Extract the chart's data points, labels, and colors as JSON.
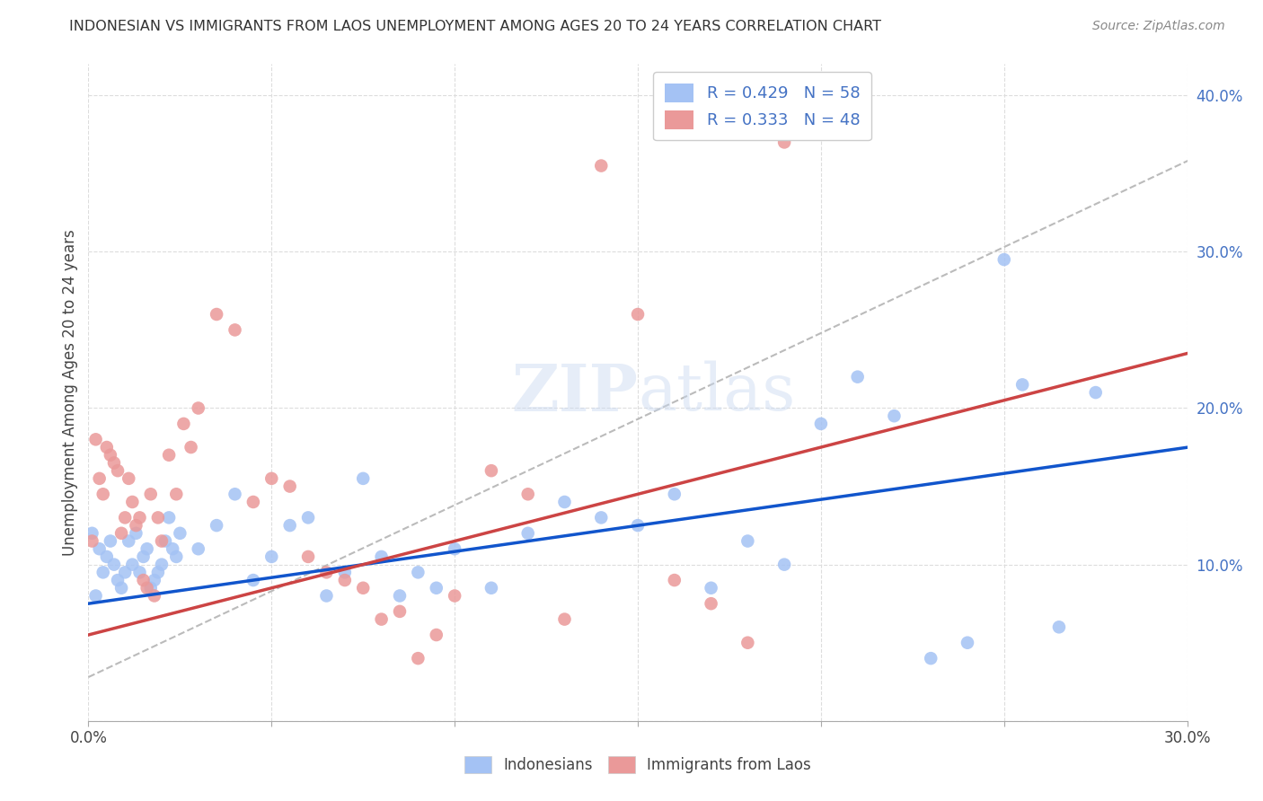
{
  "title": "INDONESIAN VS IMMIGRANTS FROM LAOS UNEMPLOYMENT AMONG AGES 20 TO 24 YEARS CORRELATION CHART",
  "source": "Source: ZipAtlas.com",
  "ylabel": "Unemployment Among Ages 20 to 24 years",
  "xlim": [
    0.0,
    0.3
  ],
  "ylim": [
    0.0,
    0.42
  ],
  "indonesian_R": 0.429,
  "indonesian_N": 58,
  "laos_R": 0.333,
  "laos_N": 48,
  "indonesian_color": "#a4c2f4",
  "laos_color": "#ea9999",
  "indonesian_line_color": "#1155cc",
  "laos_line_color": "#cc4444",
  "indonesian_line_slope": 0.333,
  "indonesian_line_intercept": 0.075,
  "laos_line_slope": 0.6,
  "laos_line_intercept": 0.055,
  "trendline_color": "#bbbbbb",
  "trendline_slope": 1.1,
  "trendline_intercept": 0.028,
  "watermark_zip": "ZIP",
  "watermark_atlas": "atlas",
  "indonesian_x": [
    0.001,
    0.002,
    0.003,
    0.004,
    0.005,
    0.006,
    0.007,
    0.008,
    0.009,
    0.01,
    0.011,
    0.012,
    0.013,
    0.014,
    0.015,
    0.016,
    0.017,
    0.018,
    0.019,
    0.02,
    0.021,
    0.022,
    0.023,
    0.024,
    0.025,
    0.03,
    0.035,
    0.04,
    0.045,
    0.05,
    0.055,
    0.06,
    0.065,
    0.07,
    0.075,
    0.08,
    0.085,
    0.09,
    0.095,
    0.1,
    0.11,
    0.12,
    0.13,
    0.14,
    0.15,
    0.16,
    0.17,
    0.18,
    0.19,
    0.2,
    0.21,
    0.22,
    0.23,
    0.24,
    0.25,
    0.255,
    0.265,
    0.275
  ],
  "indonesian_y": [
    0.12,
    0.08,
    0.11,
    0.095,
    0.105,
    0.115,
    0.1,
    0.09,
    0.085,
    0.095,
    0.115,
    0.1,
    0.12,
    0.095,
    0.105,
    0.11,
    0.085,
    0.09,
    0.095,
    0.1,
    0.115,
    0.13,
    0.11,
    0.105,
    0.12,
    0.11,
    0.125,
    0.145,
    0.09,
    0.105,
    0.125,
    0.13,
    0.08,
    0.095,
    0.155,
    0.105,
    0.08,
    0.095,
    0.085,
    0.11,
    0.085,
    0.12,
    0.14,
    0.13,
    0.125,
    0.145,
    0.085,
    0.115,
    0.1,
    0.19,
    0.22,
    0.195,
    0.04,
    0.05,
    0.295,
    0.215,
    0.06,
    0.21
  ],
  "laos_x": [
    0.001,
    0.002,
    0.003,
    0.004,
    0.005,
    0.006,
    0.007,
    0.008,
    0.009,
    0.01,
    0.011,
    0.012,
    0.013,
    0.014,
    0.015,
    0.016,
    0.017,
    0.018,
    0.019,
    0.02,
    0.022,
    0.024,
    0.026,
    0.028,
    0.03,
    0.035,
    0.04,
    0.045,
    0.05,
    0.055,
    0.06,
    0.065,
    0.07,
    0.075,
    0.08,
    0.085,
    0.09,
    0.095,
    0.1,
    0.11,
    0.12,
    0.13,
    0.14,
    0.15,
    0.16,
    0.17,
    0.18,
    0.19
  ],
  "laos_y": [
    0.115,
    0.18,
    0.155,
    0.145,
    0.175,
    0.17,
    0.165,
    0.16,
    0.12,
    0.13,
    0.155,
    0.14,
    0.125,
    0.13,
    0.09,
    0.085,
    0.145,
    0.08,
    0.13,
    0.115,
    0.17,
    0.145,
    0.19,
    0.175,
    0.2,
    0.26,
    0.25,
    0.14,
    0.155,
    0.15,
    0.105,
    0.095,
    0.09,
    0.085,
    0.065,
    0.07,
    0.04,
    0.055,
    0.08,
    0.16,
    0.145,
    0.065,
    0.355,
    0.26,
    0.09,
    0.075,
    0.05,
    0.37
  ]
}
